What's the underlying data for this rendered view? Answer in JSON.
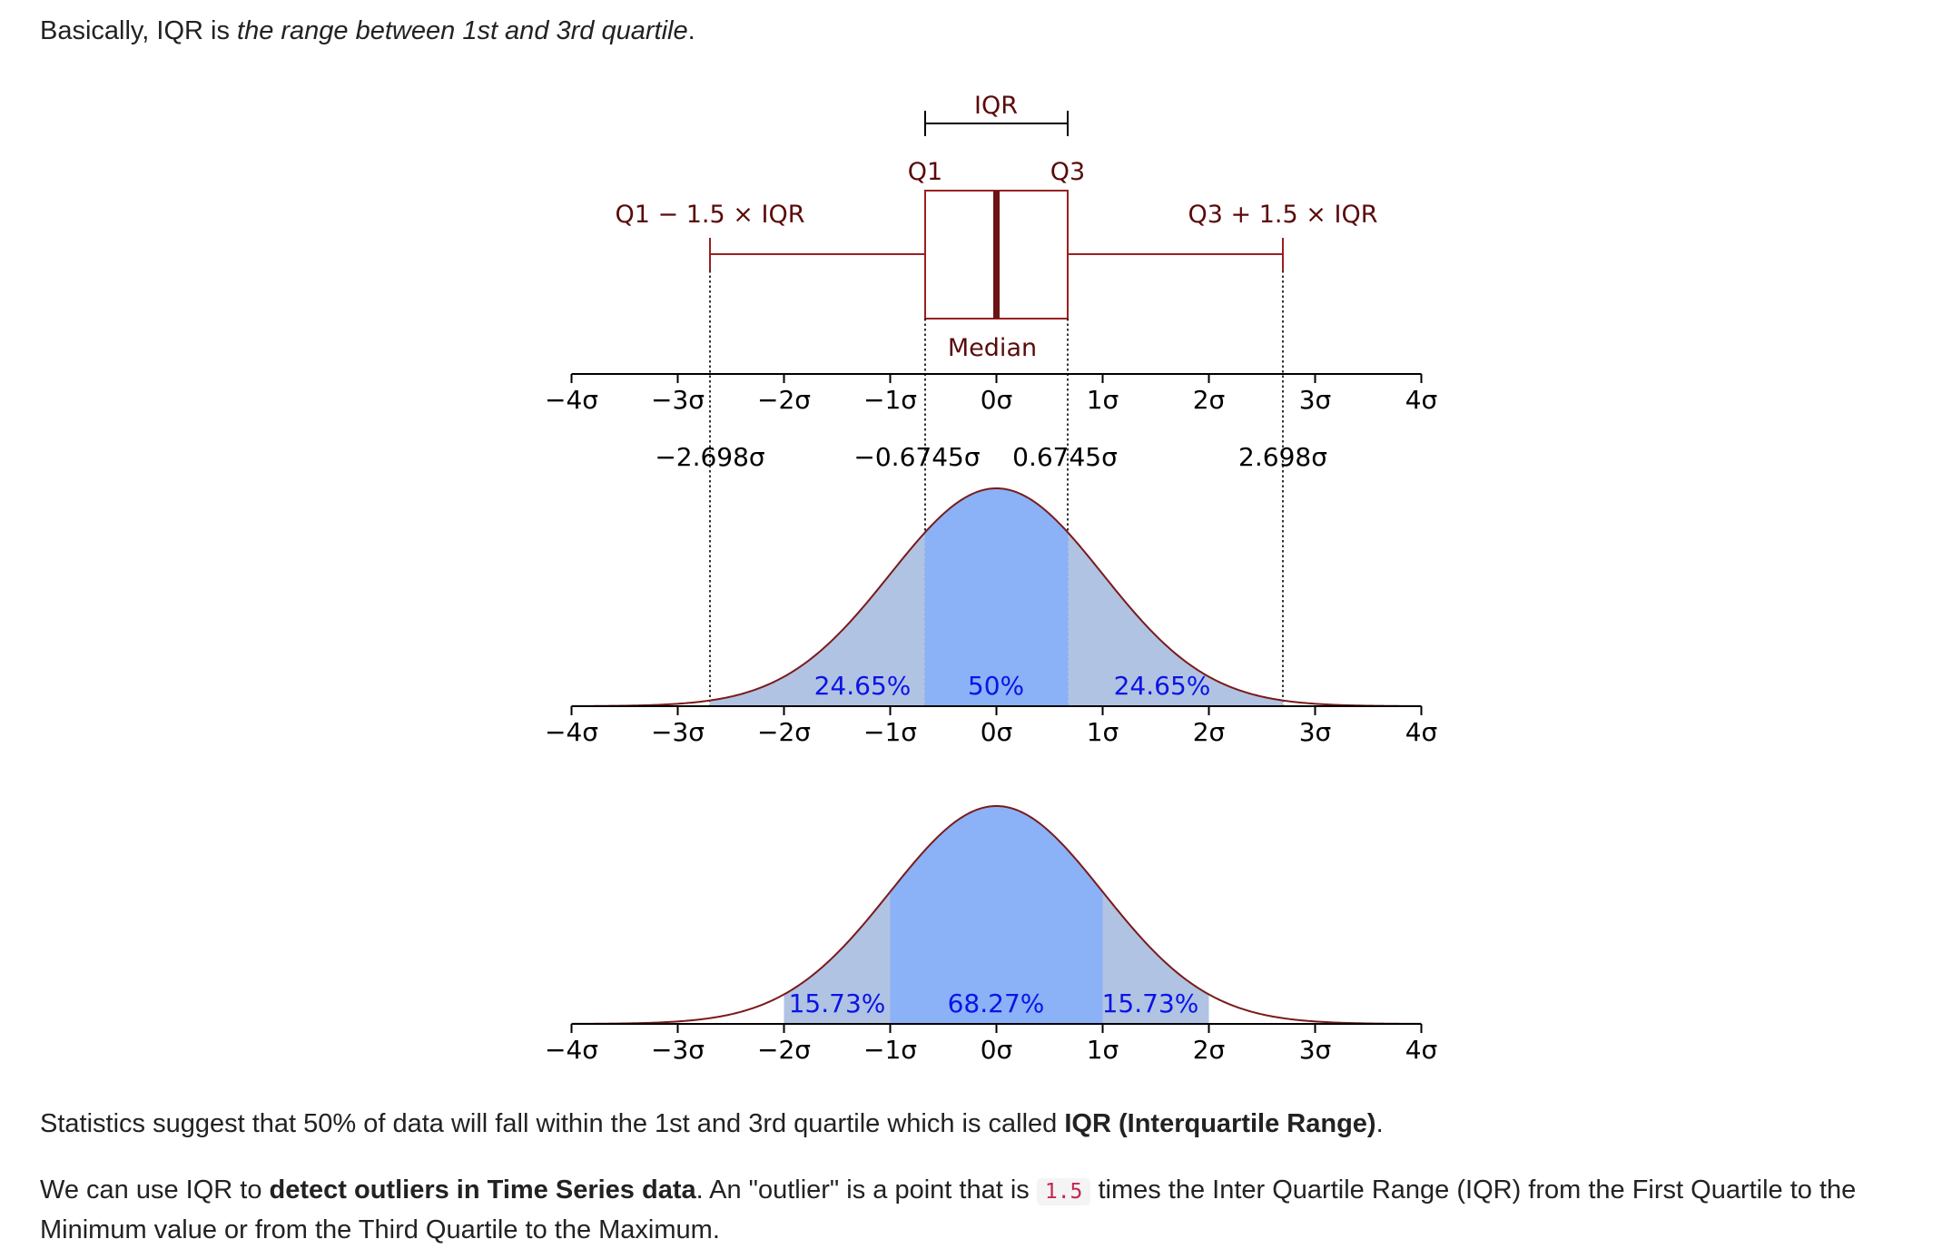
{
  "intro": {
    "prefix": "Basically, IQR is ",
    "emphasis": "the range between 1st and 3rd quartile",
    "suffix": "."
  },
  "figure": {
    "boxplot_labels": {
      "iqr": "IQR",
      "q1": "Q1",
      "q3": "Q3",
      "lower_fence": "Q1 − 1.5 × IQR",
      "upper_fence": "Q3 + 1.5 × IQR",
      "median": "Median"
    },
    "sigma_ticks": [
      "−4σ",
      "−3σ",
      "−2σ",
      "−1σ",
      "0σ",
      "1σ",
      "2σ",
      "3σ",
      "4σ"
    ],
    "marker_values": [
      "−2.698σ",
      "−0.6745σ",
      "0.6745σ",
      "2.698σ"
    ],
    "colors": {
      "outline": "#7a1a1a",
      "light_fill": "#b1c3e3",
      "dark_fill": "#8bb1f7",
      "percent_text": "#0a14e6",
      "axis": "#000000"
    }
  },
  "chart_data": [
    {
      "type": "area",
      "distribution": "standard normal",
      "xlim": [
        -4,
        4
      ],
      "x_unit": "σ",
      "regions": [
        {
          "from": -2.698,
          "to": -0.6745,
          "label": "24.65%",
          "value": 24.65
        },
        {
          "from": -0.6745,
          "to": 0.6745,
          "label": "50%",
          "value": 50
        },
        {
          "from": 0.6745,
          "to": 2.698,
          "label": "24.65%",
          "value": 24.65
        }
      ],
      "boxplot": {
        "q1": -0.6745,
        "median": 0,
        "q3": 0.6745,
        "lower_whisker": -2.698,
        "upper_whisker": 2.698
      }
    },
    {
      "type": "area",
      "distribution": "standard normal",
      "xlim": [
        -4,
        4
      ],
      "x_unit": "σ",
      "regions": [
        {
          "from": -2,
          "to": -1,
          "label": "15.73%",
          "value": 15.73
        },
        {
          "from": -1,
          "to": 1,
          "label": "68.27%",
          "value": 68.27
        },
        {
          "from": 1,
          "to": 2,
          "label": "15.73%",
          "value": 15.73
        }
      ]
    }
  ],
  "paragraph2": {
    "prefix": "Statistics suggest that 50% of data will fall within the 1st and 3rd quartile which is called ",
    "bold": "IQR (Interquartile Range)",
    "suffix": "."
  },
  "paragraph3": {
    "prefix": "We can use IQR to ",
    "bold": "detect outliers in Time Series data",
    "middle": ". An \"outlier\" is a point that is ",
    "code": "1.5",
    "suffix": " times the Inter Quartile Range (IQR) from the First Quartile to the Minimum value or from the Third Quartile to the Maximum."
  }
}
